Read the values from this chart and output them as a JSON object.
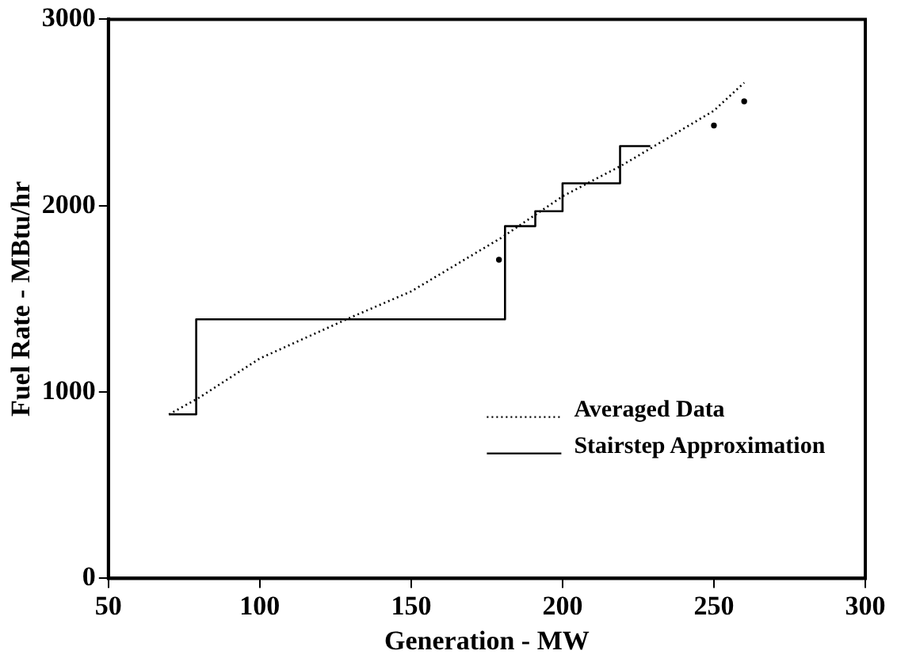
{
  "chart_data": {
    "type": "line",
    "xlabel": "Generation - MW",
    "ylabel": "Fuel Rate - MBtu/hr",
    "xlim": [
      50,
      300
    ],
    "xticks": [
      50,
      100,
      150,
      200,
      250,
      300
    ],
    "ylim": [
      0,
      3000
    ],
    "yticks": [
      0,
      1000,
      2000,
      3000
    ],
    "grid": false,
    "legend": "right",
    "series": [
      {
        "name": "Averaged Data",
        "line_style": "dotted",
        "marker": "none",
        "color": "#000000",
        "x": [
          70,
          80,
          100,
          130,
          150,
          180,
          200,
          220,
          250,
          260
        ],
        "values": [
          880,
          970,
          1180,
          1400,
          1540,
          1830,
          2050,
          2220,
          2510,
          2660
        ]
      },
      {
        "type": "scatter",
        "marker": "circle",
        "color": "#000000",
        "x": [
          179,
          250,
          260
        ],
        "values": [
          1710,
          2430,
          2560
        ]
      },
      {
        "name": "Stairstep Approximation",
        "type": "step",
        "line_style": "solid",
        "marker": "none",
        "color": "#000000",
        "x": [
          70,
          79,
          181,
          191,
          200,
          219,
          229
        ],
        "values": [
          880,
          1390,
          1890,
          1970,
          2120,
          2320,
          2320
        ]
      }
    ]
  }
}
